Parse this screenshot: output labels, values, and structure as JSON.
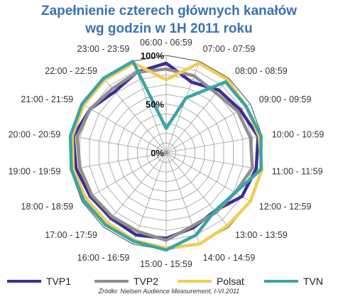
{
  "chart_data": {
    "type": "radar",
    "title_line1": "Zapełnienie czterech głównych kanałów",
    "title_line2": "wg godzin w 1H 2011 roku",
    "categories": [
      "06:00 - 06:59",
      "07:00 - 07:59",
      "08:00 - 08:59",
      "09:00 - 09:59",
      "10:00 - 10:59",
      "11:00 - 11:59",
      "12:00 - 12:59",
      "13:00 - 13:59",
      "14:00 - 14:59",
      "15:00 - 15:59",
      "16:00 - 16:59",
      "17:00 - 17:59",
      "18:00 - 18:59",
      "19:00 - 19:59",
      "20:00 - 20:59",
      "21:00 - 21:59",
      "22:00 - 22:59",
      "23:00 - 23:59"
    ],
    "tick_labels": [
      "0%",
      "50%",
      "100%"
    ],
    "rlim": [
      0,
      100
    ],
    "grid": true,
    "series": [
      {
        "name": "TVP1",
        "color": "#3b2e97",
        "values": [
          92,
          77,
          84,
          88,
          96,
          94,
          90,
          78,
          82,
          88,
          90,
          88,
          90,
          94,
          97,
          90,
          82,
          88
        ]
      },
      {
        "name": "TVP2",
        "color": "#8f8f8f",
        "values": [
          86,
          84,
          80,
          85,
          88,
          90,
          82,
          80,
          80,
          90,
          86,
          86,
          88,
          90,
          93,
          90,
          86,
          88
        ]
      },
      {
        "name": "Polsat",
        "color": "#f2cc55",
        "values": [
          75,
          98,
          98,
          95,
          97,
          100,
          100,
          98,
          100,
          98,
          96,
          94,
          95,
          97,
          98,
          98,
          98,
          98
        ]
      },
      {
        "name": "TVN",
        "color": "#3aa5a5",
        "values": [
          25,
          60,
          95,
          95,
          99,
          99,
          82,
          78,
          90,
          100,
          97,
          97,
          98,
          99,
          100,
          100,
          100,
          100
        ]
      }
    ],
    "legend_position": "bottom",
    "source": "Źródło: Nielsen Audience Measurement, I-VI.2011"
  }
}
